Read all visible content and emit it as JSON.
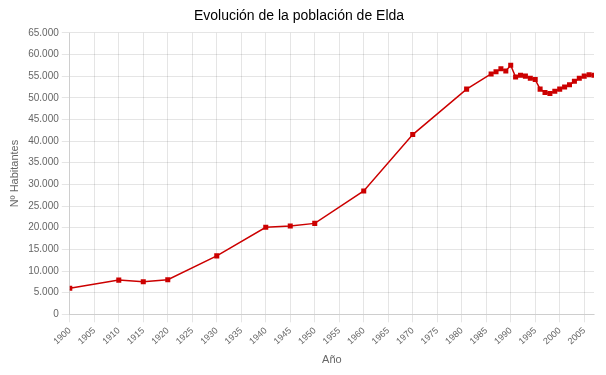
{
  "chart_data": {
    "type": "line",
    "title": "Evolución de la población de Elda",
    "xlabel": "Año",
    "ylabel": "Nº Habitantes",
    "x": [
      1900,
      1910,
      1915,
      1920,
      1930,
      1940,
      1945,
      1950,
      1960,
      1970,
      1981,
      1986,
      1987,
      1988,
      1989,
      1990,
      1991,
      1992,
      1993,
      1994,
      1995,
      1996,
      1997,
      1998,
      1999,
      2000,
      2001,
      2002,
      2003,
      2004,
      2005,
      2006,
      2007
    ],
    "values": [
      6000,
      7900,
      7500,
      8000,
      13500,
      20100,
      20400,
      21000,
      28500,
      41500,
      52000,
      55500,
      56000,
      56700,
      56200,
      57500,
      54800,
      55200,
      55000,
      54500,
      54200,
      52000,
      51200,
      51000,
      51500,
      52000,
      52500,
      53000,
      53800,
      54500,
      55000,
      55300,
      55200
    ],
    "color": "#cc0000",
    "marker": "square",
    "line_style": "solid",
    "xlim": [
      1900,
      2007
    ],
    "xticks": [
      1900,
      1905,
      1910,
      1915,
      1920,
      1925,
      1930,
      1935,
      1940,
      1945,
      1950,
      1955,
      1960,
      1965,
      1970,
      1975,
      1980,
      1985,
      1990,
      1995,
      2000,
      2005
    ],
    "ylim": [
      0,
      65000
    ],
    "yticks": [
      0,
      {
        "value": 5000,
        "label": "5.000"
      },
      {
        "value": 10000,
        "label": "10.000"
      },
      {
        "value": 15000,
        "label": "15.000"
      },
      {
        "value": 20000,
        "label": "20.000"
      },
      {
        "value": 25000,
        "label": "25.000"
      },
      {
        "value": 30000,
        "label": "30.000"
      },
      {
        "value": 35000,
        "label": "35.000"
      },
      {
        "value": 40000,
        "label": "40.000"
      },
      {
        "value": 45000,
        "label": "45.000"
      },
      {
        "value": 50000,
        "label": "50.000"
      },
      {
        "value": 55000,
        "label": "55.000"
      },
      {
        "value": 60000,
        "label": "60.000"
      },
      {
        "value": 65000,
        "label": "65.000"
      }
    ],
    "grid": true
  }
}
